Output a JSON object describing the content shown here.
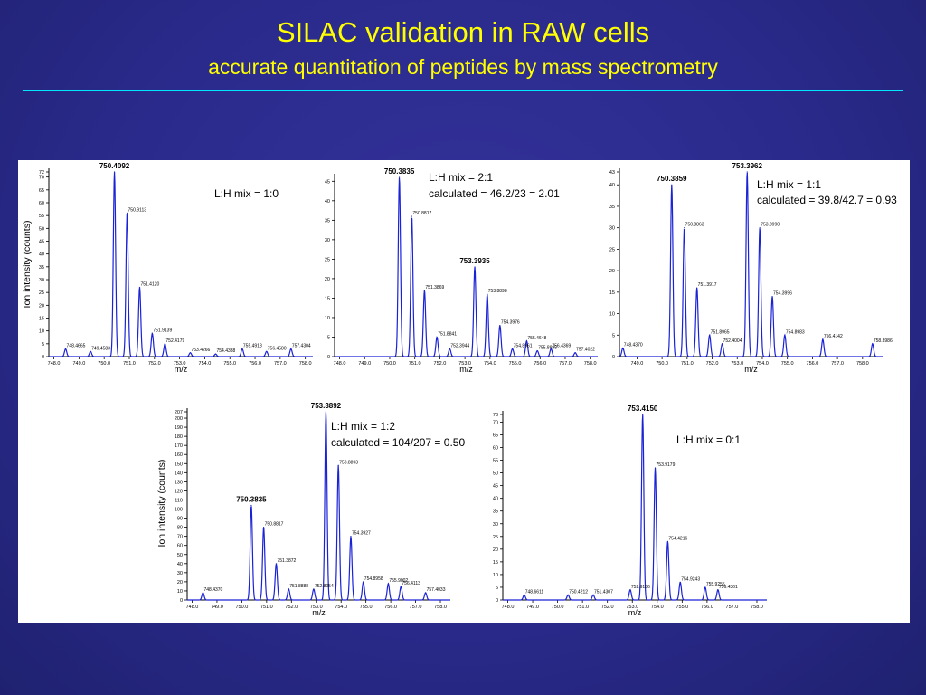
{
  "slide": {
    "title": "SILAC validation in RAW cells",
    "subtitle": "accurate quantitation of peptides by mass spectrometry",
    "rule_color": "#00e6ff",
    "title_color": "#ffff00"
  },
  "chart_data": [
    {
      "type": "line",
      "ylabel": "Ion intensity (counts)",
      "xlabel": "m/z",
      "xlim": [
        747.8,
        758.3
      ],
      "ylim": [
        0,
        72
      ],
      "xticks": [
        "748.0",
        "749.0",
        "750.0",
        "751.0",
        "752.0",
        "753.0",
        "754.0",
        "755.0",
        "756.0",
        "757.0",
        "758.0"
      ],
      "yticks": [
        "0",
        "5",
        "10",
        "15",
        "20",
        "25",
        "30",
        "35",
        "40",
        "45",
        "50",
        "55",
        "60",
        "65",
        "70",
        "72"
      ],
      "annotations": [
        {
          "text": "L:H mix = 1:0"
        }
      ],
      "peaks": [
        {
          "x": 748.4665,
          "y": 3,
          "label": "748.4665"
        },
        {
          "x": 749.4583,
          "y": 2,
          "label": "749.4583"
        },
        {
          "x": 750.4092,
          "y": 72,
          "label": "750.4092",
          "bold": true
        },
        {
          "x": 750.9113,
          "y": 56,
          "label": "750.9113"
        },
        {
          "x": 751.412,
          "y": 27,
          "label": "751.4120"
        },
        {
          "x": 751.9139,
          "y": 9,
          "label": "751.9139"
        },
        {
          "x": 752.4179,
          "y": 5,
          "label": "752.4179"
        },
        {
          "x": 753.4266,
          "y": 1.5,
          "label": "753.4266"
        },
        {
          "x": 754.4338,
          "y": 1,
          "label": "754.4338"
        },
        {
          "x": 755.4918,
          "y": 3,
          "label": "755.4918"
        },
        {
          "x": 756.458,
          "y": 2,
          "label": "756.4580"
        },
        {
          "x": 757.4304,
          "y": 3,
          "label": "757.4304"
        }
      ]
    },
    {
      "type": "line",
      "ylabel": "",
      "xlabel": "m/z",
      "xlim": [
        747.8,
        758.3
      ],
      "ylim": [
        0,
        46
      ],
      "xticks": [
        "748.0",
        "749.0",
        "750.0",
        "751.0",
        "752.0",
        "753.0",
        "754.0",
        "755.0",
        "756.0",
        "757.0",
        "758.0"
      ],
      "yticks": [
        "0",
        "5",
        "10",
        "15",
        "20",
        "25",
        "30",
        "35",
        "40",
        "45"
      ],
      "annotations": [
        {
          "text": "L:H mix = 2:1"
        },
        {
          "text": "calculated = 46.2/23 = 2.01"
        }
      ],
      "peaks": [
        {
          "x": 750.3835,
          "y": 46,
          "label": "750.3835",
          "bold": true
        },
        {
          "x": 750.8817,
          "y": 36,
          "label": "750.8817"
        },
        {
          "x": 751.3869,
          "y": 17,
          "label": "751.3869"
        },
        {
          "x": 751.8841,
          "y": 5,
          "label": "751.8841"
        },
        {
          "x": 752.3944,
          "y": 2,
          "label": "752.3944"
        },
        {
          "x": 753.3935,
          "y": 23,
          "label": "753.3935",
          "bold": true
        },
        {
          "x": 753.8898,
          "y": 16,
          "label": "753.8898"
        },
        {
          "x": 754.3976,
          "y": 8,
          "label": "754.3976"
        },
        {
          "x": 754.8961,
          "y": 2,
          "label": "754.8961"
        },
        {
          "x": 755.4648,
          "y": 4,
          "label": "755.4648"
        },
        {
          "x": 755.8895,
          "y": 1.5,
          "label": "755.8895"
        },
        {
          "x": 756.4369,
          "y": 2,
          "label": "756.4369"
        },
        {
          "x": 757.4022,
          "y": 1,
          "label": "757.4022"
        }
      ]
    },
    {
      "type": "line",
      "ylabel": "",
      "xlabel": "m/z",
      "xlim": [
        748.3,
        758.8
      ],
      "ylim": [
        0,
        43
      ],
      "xticks": [
        "749.0",
        "750.0",
        "751.0",
        "752.0",
        "753.0",
        "754.0",
        "755.0",
        "756.0",
        "757.0",
        "758.0"
      ],
      "yticks": [
        "0",
        "5",
        "10",
        "15",
        "20",
        "25",
        "30",
        "35",
        "40",
        "43"
      ],
      "annotations": [
        {
          "text": "L:H mix = 1:1"
        },
        {
          "text": "calculated = 39.8/42.7 = 0.93"
        }
      ],
      "peaks": [
        {
          "x": 748.437,
          "y": 2,
          "label": "748.4370"
        },
        {
          "x": 750.3859,
          "y": 40,
          "label": "750.3859",
          "bold": true
        },
        {
          "x": 750.8863,
          "y": 30,
          "label": "750.8863"
        },
        {
          "x": 751.3917,
          "y": 16,
          "label": "751.3917"
        },
        {
          "x": 751.8965,
          "y": 5,
          "label": "751.8965"
        },
        {
          "x": 752.4004,
          "y": 3,
          "label": "752.4004"
        },
        {
          "x": 753.3962,
          "y": 43,
          "label": "753.3962",
          "bold": true
        },
        {
          "x": 753.899,
          "y": 30,
          "label": "753.8990"
        },
        {
          "x": 754.3996,
          "y": 14,
          "label": "754.3996"
        },
        {
          "x": 754.8983,
          "y": 5,
          "label": "754.8983"
        },
        {
          "x": 756.4142,
          "y": 4,
          "label": "756.4142"
        },
        {
          "x": 758.3986,
          "y": 3,
          "label": "758.3986"
        }
      ]
    },
    {
      "type": "line",
      "ylabel": "Ion intensity (counts)",
      "xlabel": "m/z",
      "xlim": [
        747.8,
        758.4
      ],
      "ylim": [
        0,
        207
      ],
      "xticks": [
        "748.0",
        "749.0",
        "750.0",
        "751.0",
        "752.0",
        "753.0",
        "754.0",
        "755.0",
        "756.0",
        "757.0",
        "758.0"
      ],
      "yticks": [
        "0",
        "10",
        "20",
        "30",
        "40",
        "50",
        "60",
        "70",
        "80",
        "90",
        "100",
        "110",
        "120",
        "130",
        "140",
        "150",
        "160",
        "170",
        "180",
        "190",
        "200",
        "207"
      ],
      "annotations": [
        {
          "text": "L:H mix = 1:2"
        },
        {
          "text": "calculated = 104/207 = 0.50"
        }
      ],
      "peaks": [
        {
          "x": 748.437,
          "y": 8,
          "label": "748.4370"
        },
        {
          "x": 750.3835,
          "y": 104,
          "label": "750.3835",
          "bold": true
        },
        {
          "x": 750.8817,
          "y": 80,
          "label": "750.8817"
        },
        {
          "x": 751.3872,
          "y": 40,
          "label": "751.3872"
        },
        {
          "x": 751.8888,
          "y": 12,
          "label": "751.8888"
        },
        {
          "x": 752.8954,
          "y": 12,
          "label": "752.8954"
        },
        {
          "x": 753.3892,
          "y": 207,
          "label": "753.3892",
          "bold": true
        },
        {
          "x": 753.8893,
          "y": 148,
          "label": "753.8893"
        },
        {
          "x": 754.3927,
          "y": 70,
          "label": "754.3927"
        },
        {
          "x": 754.8958,
          "y": 20,
          "label": "754.8958"
        },
        {
          "x": 755.9002,
          "y": 18,
          "label": "755.9002"
        },
        {
          "x": 756.4113,
          "y": 15,
          "label": "756.4113"
        },
        {
          "x": 757.4033,
          "y": 8,
          "label": "757.4033"
        }
      ]
    },
    {
      "type": "line",
      "ylabel": "",
      "xlabel": "m/z",
      "xlim": [
        747.8,
        758.4
      ],
      "ylim": [
        0,
        73
      ],
      "xticks": [
        "748.0",
        "749.0",
        "750.0",
        "751.0",
        "752.0",
        "753.0",
        "754.0",
        "755.0",
        "756.0",
        "757.0",
        "758.0"
      ],
      "yticks": [
        "0",
        "5",
        "10",
        "15",
        "20",
        "25",
        "30",
        "35",
        "40",
        "45",
        "50",
        "55",
        "60",
        "65",
        "70",
        "73"
      ],
      "annotations": [
        {
          "text": "L:H mix = 0:1"
        }
      ],
      "peaks": [
        {
          "x": 748.6611,
          "y": 2,
          "label": "748.6611"
        },
        {
          "x": 750.4212,
          "y": 2,
          "label": "750.4212"
        },
        {
          "x": 751.4307,
          "y": 2,
          "label": "751.4307"
        },
        {
          "x": 752.9156,
          "y": 4,
          "label": "752.9156"
        },
        {
          "x": 753.415,
          "y": 73,
          "label": "753.4150",
          "bold": true
        },
        {
          "x": 753.9179,
          "y": 52,
          "label": "753.9179"
        },
        {
          "x": 754.4216,
          "y": 23,
          "label": "754.4216"
        },
        {
          "x": 754.9243,
          "y": 7,
          "label": "754.9243"
        },
        {
          "x": 755.9255,
          "y": 5,
          "label": "755.9255"
        },
        {
          "x": 756.4361,
          "y": 4,
          "label": "756.4361"
        }
      ]
    }
  ]
}
